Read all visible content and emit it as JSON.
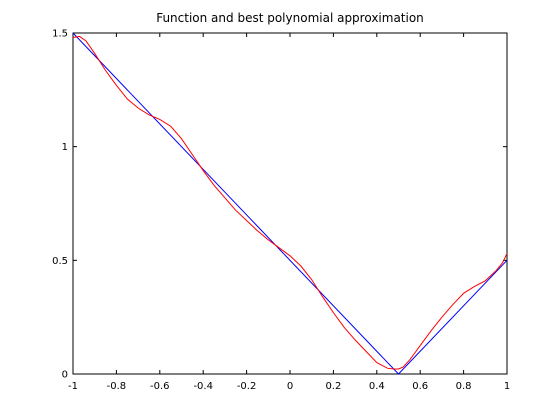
{
  "chart_data": {
    "type": "line",
    "title": "Function and best polynomial approximation",
    "xlabel": "",
    "ylabel": "",
    "xlim": [
      -1,
      1
    ],
    "ylim": [
      0,
      1.5
    ],
    "xticks": [
      -1,
      -0.8,
      -0.6,
      -0.4,
      -0.2,
      0,
      0.2,
      0.4,
      0.6,
      0.8,
      1
    ],
    "xtick_labels": [
      "-1",
      "-0.8",
      "-0.6",
      "-0.4",
      "-0.2",
      "0",
      "0.2",
      "0.4",
      "0.6",
      "0.8",
      "1"
    ],
    "yticks": [
      0,
      0.5,
      1,
      1.5
    ],
    "ytick_labels": [
      "0",
      "0.5",
      "1",
      "1.5"
    ],
    "grid": false,
    "series": [
      {
        "color": "#0000ff",
        "x": [
          -1,
          0.5,
          1
        ],
        "y": [
          1.5,
          0,
          0.5
        ]
      },
      {
        "color": "#ff0000",
        "x": [
          -1,
          -0.97,
          -0.94,
          -0.9,
          -0.85,
          -0.8,
          -0.75,
          -0.7,
          -0.65,
          -0.6,
          -0.55,
          -0.5,
          -0.45,
          -0.4,
          -0.35,
          -0.3,
          -0.25,
          -0.2,
          -0.15,
          -0.1,
          -0.05,
          0,
          0.05,
          0.1,
          0.15,
          0.2,
          0.25,
          0.3,
          0.35,
          0.4,
          0.45,
          0.48,
          0.5,
          0.52,
          0.55,
          0.6,
          0.65,
          0.7,
          0.75,
          0.8,
          0.85,
          0.9,
          0.95,
          0.98,
          1
        ],
        "y": [
          1.48,
          1.485,
          1.465,
          1.41,
          1.335,
          1.27,
          1.21,
          1.17,
          1.14,
          1.12,
          1.09,
          1.035,
          0.965,
          0.895,
          0.83,
          0.775,
          0.72,
          0.675,
          0.63,
          0.59,
          0.555,
          0.52,
          0.475,
          0.415,
          0.34,
          0.27,
          0.205,
          0.15,
          0.1,
          0.05,
          0.025,
          0.022,
          0.022,
          0.03,
          0.06,
          0.125,
          0.19,
          0.25,
          0.305,
          0.355,
          0.385,
          0.41,
          0.455,
          0.49,
          0.53
        ]
      }
    ]
  }
}
